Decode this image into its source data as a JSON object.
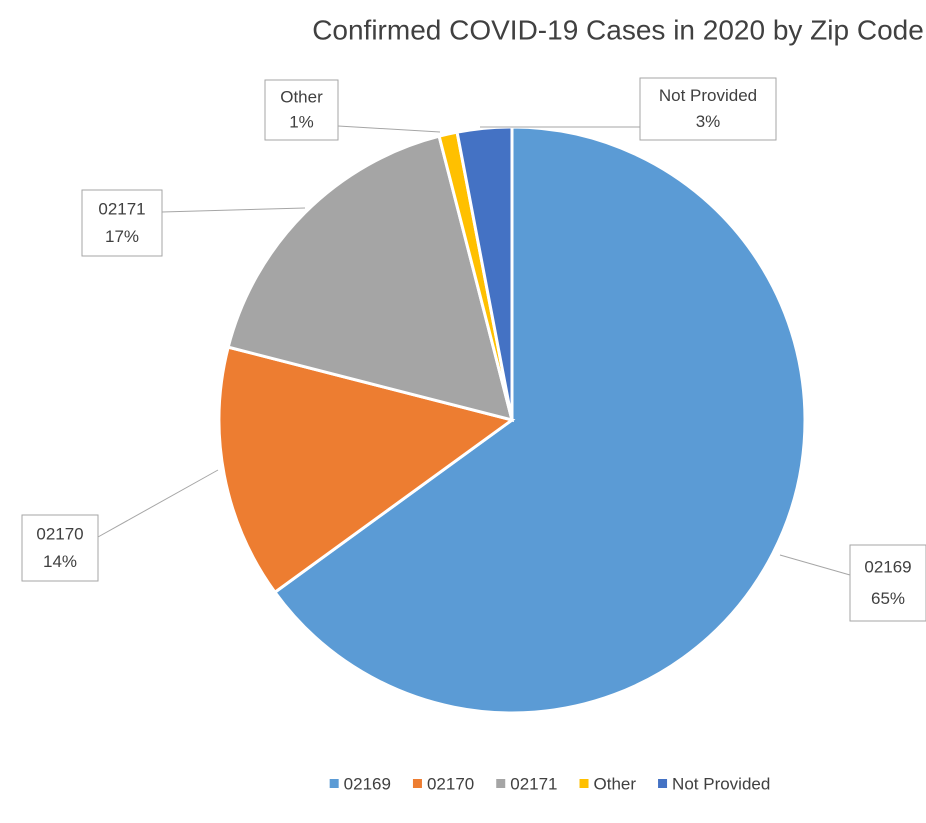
{
  "chart_data": {
    "type": "pie",
    "title": "Confirmed COVID-19 Cases in 2020 by Zip Code",
    "categories": [
      "02169",
      "02170",
      "02171",
      "Other",
      "Not Provided"
    ],
    "values": [
      65,
      14,
      17,
      1,
      3
    ],
    "value_labels": [
      "65%",
      "14%",
      "17%",
      "1%",
      "3%"
    ],
    "colors": [
      "#5b9bd5",
      "#ed7d31",
      "#a5a5a5",
      "#ffc000",
      "#4472c4"
    ],
    "legend": "bottom"
  }
}
